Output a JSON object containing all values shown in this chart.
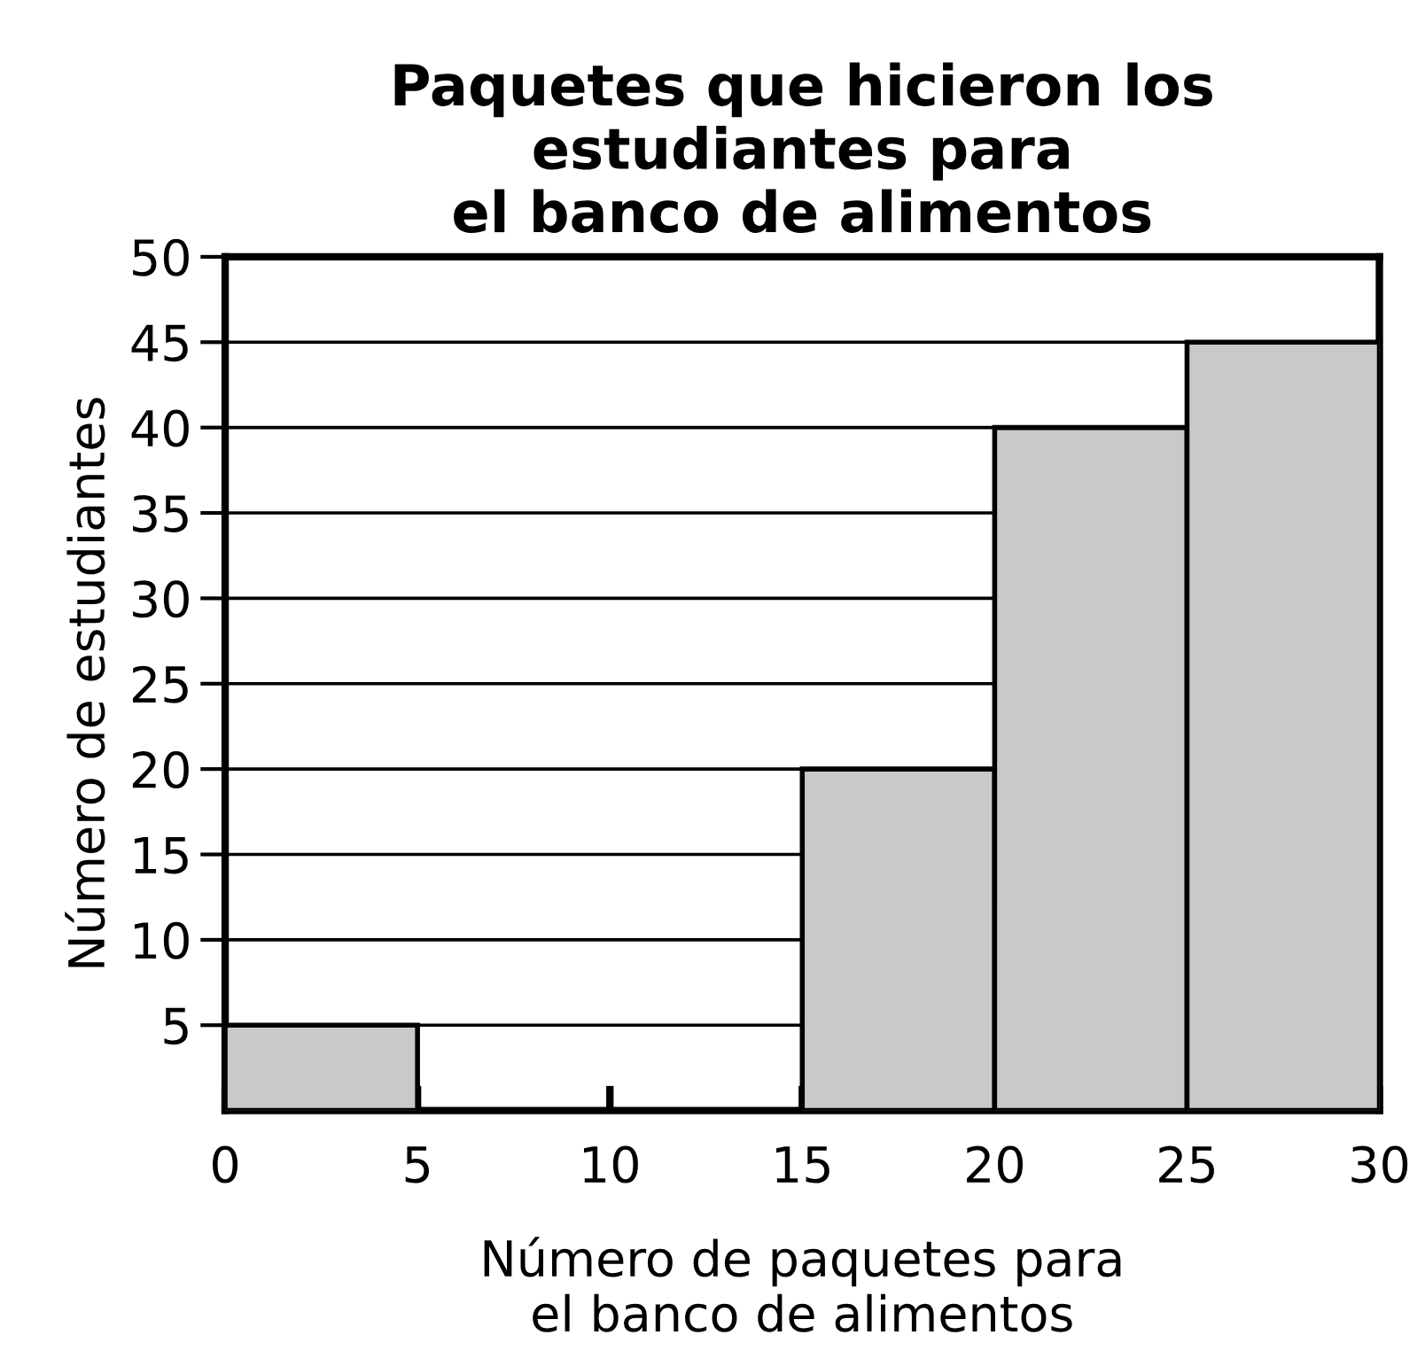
{
  "chart_data": {
    "type": "histogram",
    "title": "Paquetes que hicieron los\nestudiantes para\nel banco de alimentos",
    "xlabel": "Número de paquetes para\nel banco de alimentos",
    "ylabel": "Número de estudiantes",
    "bins": [
      0,
      5,
      10,
      15,
      20,
      25,
      30
    ],
    "values": [
      5,
      0,
      0,
      20,
      40,
      45
    ],
    "color": "#c8c9cb",
    "xlim": [
      0,
      30
    ],
    "ylim": [
      0,
      50
    ],
    "xticks": [
      0,
      5,
      10,
      15,
      20,
      25,
      30
    ],
    "yticks": [
      5,
      10,
      15,
      20,
      25,
      30,
      35,
      40,
      45,
      50
    ],
    "grid": "y"
  }
}
